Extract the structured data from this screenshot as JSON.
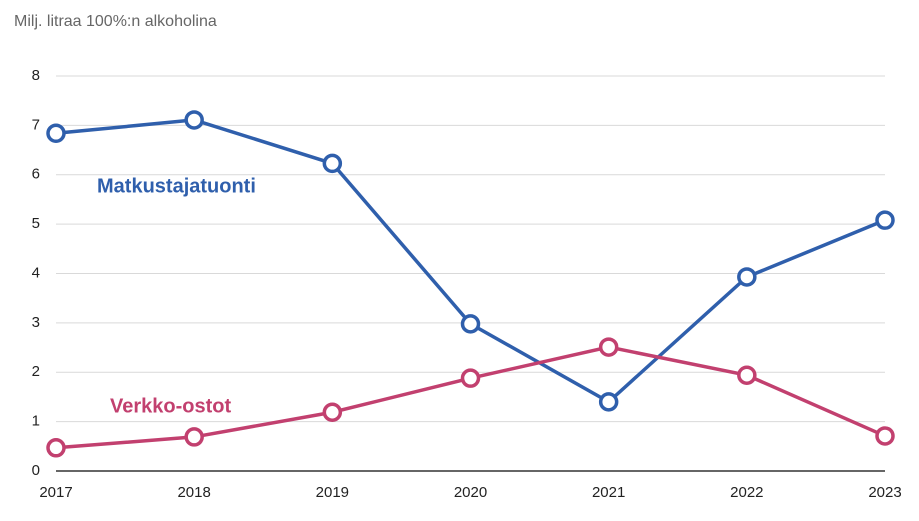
{
  "chart_data": {
    "type": "line",
    "title": "Milj. litraa 100%:n alkoholina",
    "categories": [
      "2017",
      "2018",
      "2019",
      "2020",
      "2021",
      "2022",
      "2023"
    ],
    "series": [
      {
        "name": "Matkustajatuonti",
        "color": "#2f5fac",
        "values": [
          6.84,
          7.11,
          6.23,
          2.98,
          1.4,
          3.93,
          5.08
        ]
      },
      {
        "name": "Verkko-ostot",
        "color": "#c2406f",
        "values": [
          0.47,
          0.69,
          1.19,
          1.88,
          2.51,
          1.94,
          0.71
        ]
      }
    ],
    "ylim": [
      0,
      8
    ],
    "yticks": [
      0,
      1,
      2,
      3,
      4,
      5,
      6,
      7,
      8
    ],
    "grid": true
  }
}
